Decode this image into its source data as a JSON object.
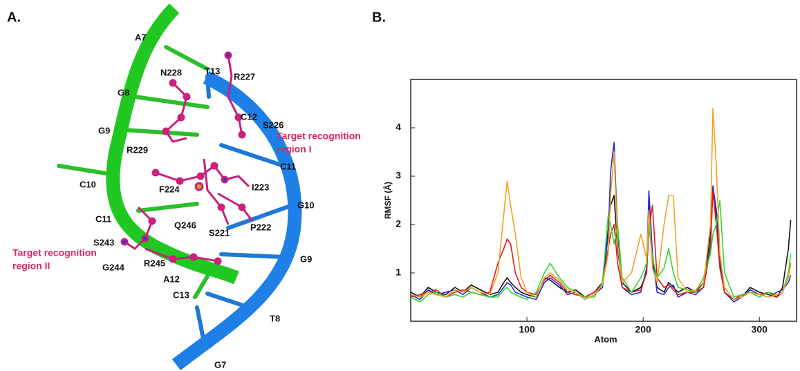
{
  "panel_a": {
    "label": "A.",
    "strand_1": [
      "A7",
      "G8",
      "G9",
      "C10",
      "C11",
      "A12",
      "C13"
    ],
    "strand_2": [
      "T13",
      "C12",
      "C11",
      "G10",
      "G9",
      "T8",
      "G7"
    ],
    "residues": [
      "N228",
      "R227",
      "S226",
      "R229",
      "F224",
      "I223",
      "P222",
      "S221",
      "Q246",
      "S243",
      "G244",
      "R245"
    ],
    "region_1": [
      "Target recognition",
      "region I"
    ],
    "region_2": [
      "Target recognition",
      "region II"
    ]
  },
  "chart_data": {
    "type": "line",
    "panel_label": "B.",
    "x_label": "Atom",
    "y_label": "RMSF (Å)",
    "x": [
      0,
      8,
      15,
      22,
      30,
      38,
      45,
      52,
      60,
      68,
      75,
      80,
      83,
      86,
      90,
      95,
      100,
      108,
      115,
      120,
      128,
      135,
      142,
      150,
      158,
      165,
      170,
      172,
      175,
      178,
      182,
      190,
      198,
      203,
      205,
      208,
      212,
      218,
      222,
      226,
      230,
      238,
      245,
      252,
      258,
      260,
      263,
      266,
      270,
      278,
      285,
      292,
      300,
      308,
      315,
      320,
      325,
      327
    ],
    "series": [
      {
        "color": "#111111",
        "values": [
          0.6,
          0.5,
          0.7,
          0.6,
          0.55,
          0.7,
          0.6,
          0.75,
          0.65,
          0.55,
          0.6,
          0.8,
          0.9,
          0.8,
          0.7,
          0.6,
          0.55,
          0.5,
          0.9,
          0.85,
          0.7,
          0.6,
          0.65,
          0.5,
          0.6,
          0.8,
          1.9,
          2.4,
          2.6,
          1.5,
          0.8,
          0.6,
          0.7,
          1.0,
          2.4,
          1.2,
          0.7,
          0.6,
          0.8,
          0.7,
          0.6,
          0.7,
          0.6,
          0.8,
          1.8,
          2.7,
          2.2,
          1.2,
          0.6,
          0.45,
          0.5,
          0.7,
          0.6,
          0.55,
          0.5,
          0.7,
          1.5,
          2.1
        ]
      },
      {
        "color": "#1f2fd6",
        "values": [
          0.55,
          0.45,
          0.65,
          0.55,
          0.6,
          0.65,
          0.55,
          0.7,
          0.6,
          0.5,
          0.55,
          0.7,
          0.8,
          0.75,
          0.6,
          0.55,
          0.5,
          0.45,
          0.8,
          0.9,
          0.75,
          0.55,
          0.6,
          0.45,
          0.55,
          0.7,
          1.8,
          3.1,
          3.7,
          1.8,
          0.7,
          0.55,
          0.6,
          1.1,
          2.7,
          1.4,
          0.6,
          0.55,
          0.7,
          0.75,
          0.5,
          0.6,
          0.55,
          0.7,
          1.6,
          2.8,
          2.3,
          1.3,
          0.6,
          0.4,
          0.5,
          0.65,
          0.55,
          0.5,
          0.6,
          0.65,
          0.8,
          0.95
        ]
      },
      {
        "color": "#e01818",
        "values": [
          0.5,
          0.55,
          0.6,
          0.65,
          0.5,
          0.6,
          0.65,
          0.6,
          0.55,
          0.6,
          1.2,
          1.5,
          1.7,
          1.6,
          1.0,
          0.7,
          0.6,
          0.55,
          0.85,
          0.95,
          0.8,
          0.6,
          0.55,
          0.5,
          0.6,
          0.75,
          1.5,
          1.8,
          2.0,
          1.2,
          0.7,
          0.6,
          0.65,
          1.0,
          1.9,
          2.4,
          0.9,
          0.7,
          0.75,
          0.65,
          0.55,
          0.6,
          0.6,
          0.7,
          1.5,
          2.7,
          2.0,
          1.1,
          0.6,
          0.45,
          0.55,
          0.6,
          0.55,
          0.6,
          0.5,
          0.6,
          0.9,
          1.2
        ]
      },
      {
        "color": "#2fd62f",
        "values": [
          0.5,
          0.4,
          0.55,
          0.6,
          0.5,
          0.55,
          0.5,
          0.6,
          0.55,
          0.5,
          0.5,
          0.65,
          0.7,
          0.6,
          0.55,
          0.5,
          0.45,
          0.6,
          1.0,
          1.2,
          0.9,
          0.7,
          0.6,
          0.5,
          0.5,
          0.8,
          2.2,
          2.0,
          1.6,
          2.0,
          0.9,
          0.6,
          0.9,
          1.2,
          2.0,
          1.3,
          0.9,
          1.1,
          1.5,
          1.0,
          0.7,
          0.65,
          0.6,
          0.9,
          1.4,
          1.8,
          2.0,
          2.5,
          1.0,
          0.5,
          0.55,
          0.6,
          0.5,
          0.6,
          0.55,
          0.6,
          1.0,
          1.4
        ]
      },
      {
        "color": "#f5a020",
        "values": [
          0.55,
          0.5,
          0.6,
          0.55,
          0.5,
          0.65,
          0.6,
          0.7,
          0.6,
          0.55,
          1.0,
          2.2,
          2.9,
          2.4,
          1.8,
          0.9,
          0.6,
          0.5,
          0.9,
          1.0,
          0.85,
          0.65,
          0.6,
          0.45,
          0.55,
          0.75,
          1.4,
          2.6,
          3.5,
          1.6,
          0.8,
          1.0,
          1.8,
          1.3,
          2.3,
          1.1,
          0.8,
          2.0,
          2.6,
          2.6,
          0.9,
          0.6,
          0.65,
          0.8,
          2.0,
          4.4,
          3.2,
          1.4,
          0.7,
          0.45,
          0.5,
          0.6,
          0.55,
          0.5,
          0.55,
          0.6,
          0.9,
          1.2
        ]
      }
    ],
    "xlim": [
      0,
      332
    ],
    "ylim": [
      0,
      5
    ],
    "xticks": [
      100,
      200,
      300
    ],
    "yticks": [
      1,
      2,
      3,
      4
    ]
  }
}
